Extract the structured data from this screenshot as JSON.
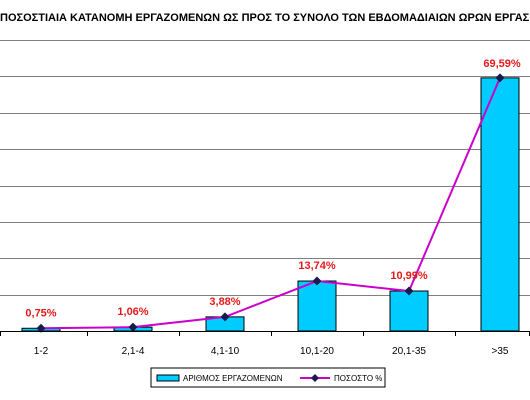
{
  "chart_data": {
    "type": "bar",
    "title": "ΠΟΣΟΣΤΙΑΙΑ ΚΑΤΑΝΟΜΗ ΕΡΓΑΖΟΜΕΝΩΝ ΩΣ ΠΡΟΣ ΤΟ ΣΥΝΟΛΟ ΤΩΝ ΕΒΔΟΜΑΔΙΑΙΩΝ ΩΡΩΝ ΕΡΓΑΣΙΑΣ",
    "xlabel": "",
    "ylabel": "",
    "categories": [
      "1-2",
      "2,1-4",
      "4,1-10",
      "10,1-20",
      "20,1-35",
      ">35"
    ],
    "series": [
      {
        "name": "ΑΡΙΘΜΟΣ ΕΡΓΑΖΟΜΕΝΩΝ",
        "type": "bar",
        "values": [
          0.75,
          1.06,
          3.88,
          13.74,
          10.99,
          69.59
        ],
        "color": "#00ccff"
      },
      {
        "name": "ΠΟΣΟΣΤΟ %",
        "type": "line",
        "values": [
          0.75,
          1.06,
          3.88,
          13.74,
          10.99,
          69.59
        ],
        "color": "#cc00cc",
        "marker_color": "#1a1a4d"
      }
    ],
    "data_labels": [
      "0,75%",
      "1,06%",
      "3,88%",
      "13,74%",
      "10,99%",
      "69,59%"
    ],
    "label_color": "#e31a1c",
    "ylim": [
      0,
      80
    ],
    "gridlines": [
      0,
      10,
      20,
      30,
      40,
      50,
      60,
      70,
      80
    ],
    "grid": true,
    "legend_position": "bottom"
  }
}
